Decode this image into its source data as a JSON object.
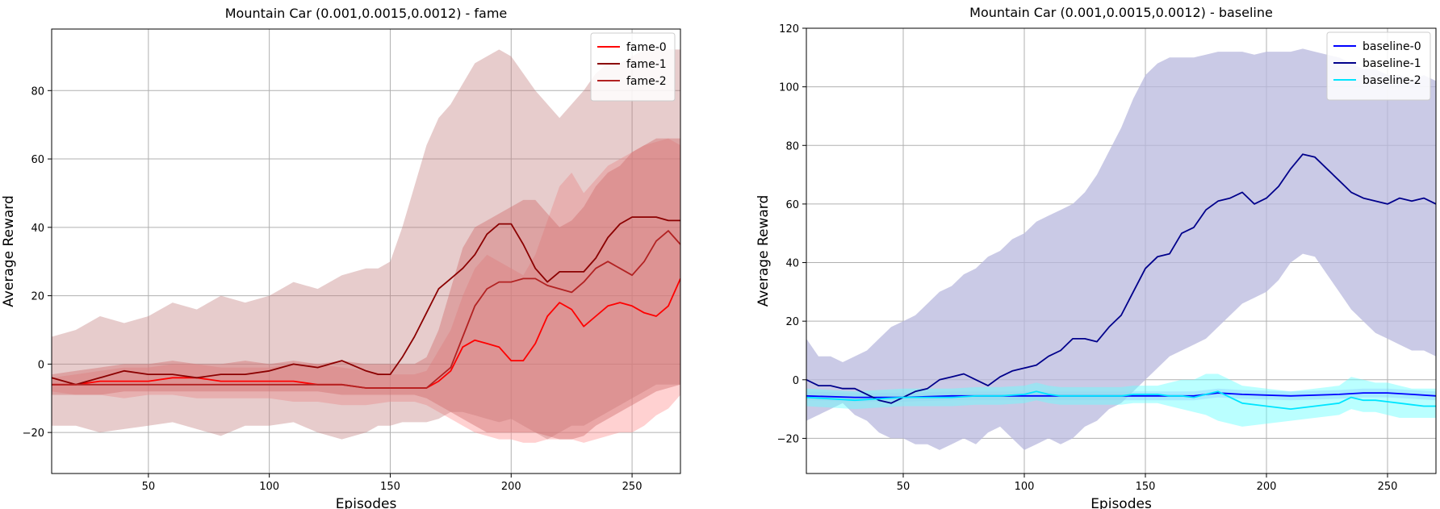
{
  "chart_data": [
    {
      "type": "line",
      "title": "Mountain Car (0.001,0.0015,0.0012) - fame",
      "xlabel": "Episodes",
      "ylabel": "Average Reward",
      "xlim": [
        10,
        270
      ],
      "ylim": [
        -32,
        98
      ],
      "xticks": [
        50,
        100,
        150,
        200,
        250
      ],
      "yticks": [
        -20,
        0,
        20,
        40,
        60,
        80
      ],
      "grid": true,
      "legend_position": "top-right",
      "series": [
        {
          "name": "fame-0",
          "color": "#ff0000",
          "band_color": "#ff9999",
          "band_opacity": 0.45,
          "x": [
            10,
            20,
            30,
            40,
            50,
            60,
            70,
            80,
            90,
            100,
            110,
            120,
            130,
            140,
            150,
            160,
            165,
            170,
            175,
            180,
            185,
            190,
            195,
            200,
            205,
            210,
            215,
            220,
            225,
            230,
            235,
            240,
            245,
            250,
            255,
            260,
            265,
            270
          ],
          "values": [
            -6,
            -6,
            -5,
            -5,
            -5,
            -4,
            -4,
            -5,
            -5,
            -5,
            -5,
            -6,
            -6,
            -7,
            -7,
            -7,
            -7,
            -5,
            -2,
            5,
            7,
            6,
            5,
            1,
            1,
            6,
            14,
            18,
            16,
            11,
            14,
            17,
            18,
            17,
            15,
            14,
            17,
            25
          ],
          "lower": [
            -8,
            -9,
            -9,
            -10,
            -9,
            -9,
            -10,
            -10,
            -10,
            -10,
            -11,
            -11,
            -12,
            -12,
            -11,
            -11,
            -12,
            -14,
            -16,
            -18,
            -20,
            -21,
            -22,
            -22,
            -23,
            -23,
            -22,
            -22,
            -22,
            -23,
            -22,
            -21,
            -20,
            -20,
            -18,
            -15,
            -13,
            -9
          ],
          "upper": [
            -4,
            -3,
            -2,
            -1,
            -1,
            0,
            0,
            -1,
            -1,
            -1,
            0,
            0,
            -1,
            -2,
            -3,
            -3,
            -2,
            4,
            10,
            20,
            28,
            32,
            30,
            28,
            26,
            32,
            42,
            52,
            56,
            50,
            54,
            58,
            60,
            62,
            64,
            65,
            66,
            64
          ]
        },
        {
          "name": "fame-1",
          "color": "#8b0000",
          "band_color": "#c48080",
          "band_opacity": 0.4,
          "x": [
            10,
            20,
            30,
            40,
            50,
            60,
            70,
            80,
            90,
            100,
            110,
            120,
            130,
            140,
            145,
            150,
            155,
            160,
            165,
            170,
            175,
            180,
            185,
            190,
            195,
            200,
            205,
            210,
            215,
            220,
            225,
            230,
            235,
            240,
            245,
            250,
            255,
            260,
            265,
            270
          ],
          "values": [
            -4,
            -6,
            -4,
            -2,
            -3,
            -3,
            -4,
            -3,
            -3,
            -2,
            0,
            -1,
            1,
            -2,
            -3,
            -3,
            2,
            8,
            15,
            22,
            25,
            28,
            32,
            38,
            41,
            41,
            35,
            28,
            24,
            27,
            27,
            27,
            31,
            37,
            41,
            43,
            43,
            43,
            42,
            42
          ],
          "lower": [
            -18,
            -18,
            -20,
            -19,
            -18,
            -17,
            -19,
            -21,
            -18,
            -18,
            -17,
            -20,
            -22,
            -20,
            -18,
            -18,
            -17,
            -17,
            -17,
            -16,
            -14,
            -14,
            -15,
            -16,
            -17,
            -16,
            -18,
            -20,
            -22,
            -20,
            -18,
            -18,
            -16,
            -14,
            -12,
            -10,
            -8,
            -6,
            -6,
            -6
          ],
          "upper": [
            8,
            10,
            14,
            12,
            14,
            18,
            16,
            20,
            18,
            20,
            24,
            22,
            26,
            28,
            28,
            30,
            40,
            52,
            64,
            72,
            76,
            82,
            88,
            90,
            92,
            90,
            85,
            80,
            76,
            72,
            76,
            80,
            85,
            88,
            88,
            90,
            92,
            92,
            92,
            92
          ]
        },
        {
          "name": "fame-2",
          "color": "#b22222",
          "band_color": "#d07070",
          "band_opacity": 0.45,
          "x": [
            10,
            20,
            30,
            40,
            50,
            60,
            70,
            80,
            90,
            100,
            110,
            120,
            130,
            140,
            150,
            160,
            165,
            170,
            175,
            180,
            185,
            190,
            195,
            200,
            205,
            210,
            215,
            220,
            225,
            230,
            235,
            240,
            245,
            250,
            255,
            260,
            265,
            270
          ],
          "values": [
            -6,
            -6,
            -6,
            -6,
            -6,
            -6,
            -6,
            -6,
            -6,
            -6,
            -6,
            -6,
            -6,
            -7,
            -7,
            -7,
            -7,
            -4,
            -1,
            8,
            17,
            22,
            24,
            24,
            25,
            25,
            23,
            22,
            21,
            24,
            28,
            30,
            28,
            26,
            30,
            36,
            39,
            35
          ],
          "lower": [
            -9,
            -9,
            -9,
            -8,
            -8,
            -8,
            -8,
            -8,
            -8,
            -8,
            -8,
            -8,
            -9,
            -9,
            -9,
            -9,
            -10,
            -12,
            -14,
            -16,
            -18,
            -20,
            -20,
            -20,
            -20,
            -20,
            -21,
            -22,
            -22,
            -21,
            -18,
            -16,
            -14,
            -12,
            -10,
            -8,
            -7,
            -6
          ],
          "upper": [
            -3,
            -2,
            -1,
            0,
            0,
            1,
            0,
            0,
            1,
            0,
            1,
            0,
            1,
            0,
            0,
            0,
            2,
            10,
            22,
            34,
            40,
            42,
            44,
            46,
            48,
            48,
            44,
            40,
            42,
            46,
            52,
            56,
            58,
            62,
            64,
            66,
            66,
            66
          ]
        }
      ]
    },
    {
      "type": "line",
      "title": "Mountain Car (0.001,0.0015,0.0012) - baseline",
      "xlabel": "Episodes",
      "ylabel": "Average Reward",
      "xlim": [
        10,
        270
      ],
      "ylim": [
        -32,
        120
      ],
      "xticks": [
        50,
        100,
        150,
        200,
        250
      ],
      "yticks": [
        -20,
        0,
        20,
        40,
        60,
        80,
        100,
        120
      ],
      "grid": true,
      "legend_position": "top-right",
      "series": [
        {
          "name": "baseline-0",
          "color": "#0000ff",
          "band_color": "#9999ff",
          "band_opacity": 0.35,
          "x": [
            10,
            30,
            50,
            70,
            90,
            110,
            130,
            150,
            170,
            180,
            190,
            210,
            230,
            240,
            250,
            260,
            270
          ],
          "values": [
            -5.5,
            -6,
            -6,
            -5.5,
            -5.5,
            -5.5,
            -5.5,
            -5.5,
            -5.5,
            -4.5,
            -5,
            -5.5,
            -5,
            -4.5,
            -4.5,
            -5,
            -5.5
          ],
          "lower": [
            -7,
            -7.5,
            -7.5,
            -7,
            -7,
            -7,
            -7,
            -7,
            -7,
            -6,
            -6.5,
            -7,
            -6.5,
            -6,
            -6,
            -6.5,
            -7
          ],
          "upper": [
            -4,
            -4.5,
            -4.5,
            -4,
            -4,
            -4,
            -4,
            -4,
            -4,
            -3,
            -3.5,
            -4,
            -3.5,
            -3,
            -3,
            -3.5,
            -4
          ]
        },
        {
          "name": "baseline-1",
          "color": "#00008b",
          "band_color": "#b8b8dd",
          "band_opacity": 0.75,
          "x": [
            10,
            15,
            20,
            25,
            30,
            35,
            40,
            45,
            50,
            55,
            60,
            65,
            70,
            75,
            80,
            85,
            90,
            95,
            100,
            105,
            110,
            115,
            120,
            125,
            130,
            135,
            140,
            145,
            150,
            155,
            160,
            165,
            170,
            175,
            180,
            185,
            190,
            195,
            200,
            205,
            210,
            215,
            220,
            225,
            230,
            235,
            240,
            245,
            250,
            255,
            260,
            265,
            270
          ],
          "values": [
            0,
            -2,
            -2,
            -3,
            -3,
            -5,
            -7,
            -8,
            -6,
            -4,
            -3,
            0,
            1,
            2,
            0,
            -2,
            1,
            3,
            4,
            5,
            8,
            10,
            14,
            14,
            13,
            18,
            22,
            30,
            38,
            42,
            43,
            50,
            52,
            58,
            61,
            62,
            64,
            60,
            62,
            66,
            72,
            77,
            76,
            72,
            68,
            64,
            62,
            61,
            60,
            62,
            61,
            62,
            60
          ],
          "lower": [
            -14,
            -12,
            -10,
            -8,
            -12,
            -14,
            -18,
            -20,
            -20,
            -22,
            -22,
            -24,
            -22,
            -20,
            -22,
            -18,
            -16,
            -20,
            -24,
            -22,
            -20,
            -22,
            -20,
            -16,
            -14,
            -10,
            -8,
            -4,
            0,
            4,
            8,
            10,
            12,
            14,
            18,
            22,
            26,
            28,
            30,
            34,
            40,
            43,
            42,
            36,
            30,
            24,
            20,
            16,
            14,
            12,
            10,
            10,
            8
          ],
          "upper": [
            14,
            8,
            8,
            6,
            8,
            10,
            14,
            18,
            20,
            22,
            26,
            30,
            32,
            36,
            38,
            42,
            44,
            48,
            50,
            54,
            56,
            58,
            60,
            64,
            70,
            78,
            86,
            96,
            104,
            108,
            110,
            110,
            110,
            111,
            112,
            112,
            112,
            111,
            112,
            112,
            112,
            113,
            112,
            111,
            110,
            108,
            106,
            106,
            104,
            104,
            102,
            104,
            102
          ]
        },
        {
          "name": "baseline-2",
          "color": "#00e5ff",
          "band_color": "#66ffff",
          "band_opacity": 0.45,
          "x": [
            10,
            20,
            30,
            40,
            50,
            60,
            70,
            80,
            90,
            100,
            105,
            110,
            115,
            120,
            130,
            140,
            145,
            150,
            155,
            160,
            165,
            170,
            175,
            180,
            185,
            190,
            200,
            210,
            220,
            230,
            235,
            240,
            245,
            250,
            255,
            260,
            265,
            270
          ],
          "values": [
            -6,
            -6.5,
            -7,
            -6.5,
            -6,
            -6,
            -6,
            -5.5,
            -5.5,
            -5,
            -4,
            -5,
            -5.5,
            -5.5,
            -5.5,
            -5.5,
            -5,
            -5,
            -5,
            -5.5,
            -5.5,
            -6,
            -5,
            -4,
            -6,
            -8,
            -9,
            -10,
            -9,
            -8,
            -6,
            -7,
            -7,
            -7.5,
            -8,
            -8.5,
            -9,
            -9
          ],
          "lower": [
            -9,
            -9.5,
            -10,
            -9.5,
            -9,
            -9,
            -9,
            -8.5,
            -8.5,
            -8,
            -7,
            -8,
            -8.5,
            -8.5,
            -8.5,
            -8.5,
            -8,
            -8,
            -8,
            -9,
            -10,
            -11,
            -12,
            -14,
            -15,
            -16,
            -15,
            -14,
            -13,
            -12,
            -10,
            -11,
            -11,
            -12,
            -13,
            -13,
            -13,
            -13
          ],
          "upper": [
            -3,
            -3.5,
            -4,
            -3.5,
            -3,
            -3,
            -3,
            -2.5,
            -2.5,
            -2,
            -1,
            -2,
            -2.5,
            -2.5,
            -2.5,
            -2.5,
            -2,
            -2,
            -2,
            -1,
            0,
            0,
            2,
            2,
            0,
            -2,
            -3,
            -4,
            -3,
            -2,
            1,
            0,
            -1,
            -1,
            -2,
            -3,
            -3,
            -3
          ]
        }
      ]
    }
  ]
}
